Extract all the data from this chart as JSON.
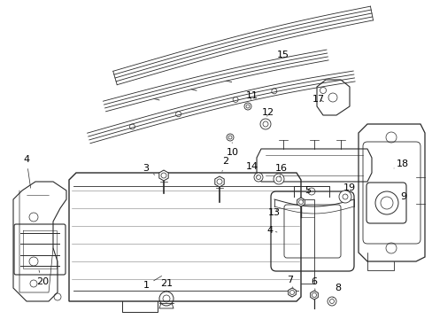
{
  "background_color": "#ffffff",
  "line_color": "#2a2a2a",
  "text_color": "#000000",
  "fig_width": 4.89,
  "fig_height": 3.6,
  "dpi": 100
}
